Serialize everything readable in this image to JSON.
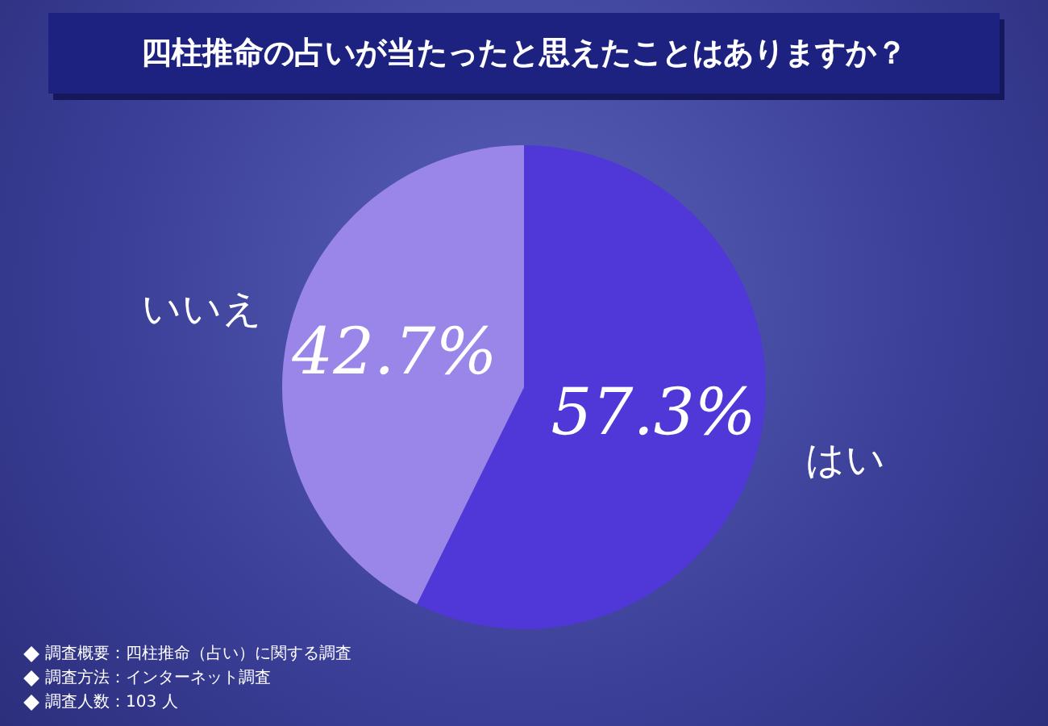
{
  "chart_data": {
    "type": "pie",
    "title": "四柱推命の占いが当たったと思えたことはありますか？",
    "categories": [
      "はい",
      "いいえ"
    ],
    "values": [
      57.3,
      42.7
    ],
    "colors": [
      "#5038d8",
      "#9a86e8"
    ],
    "value_labels": [
      "57.3%",
      "42.7%"
    ],
    "legend": false,
    "annotations": [
      "調査概要：四柱推命（占い）に関する調査",
      "調査方法：インターネット調査",
      "調査人数：103 人"
    ]
  }
}
